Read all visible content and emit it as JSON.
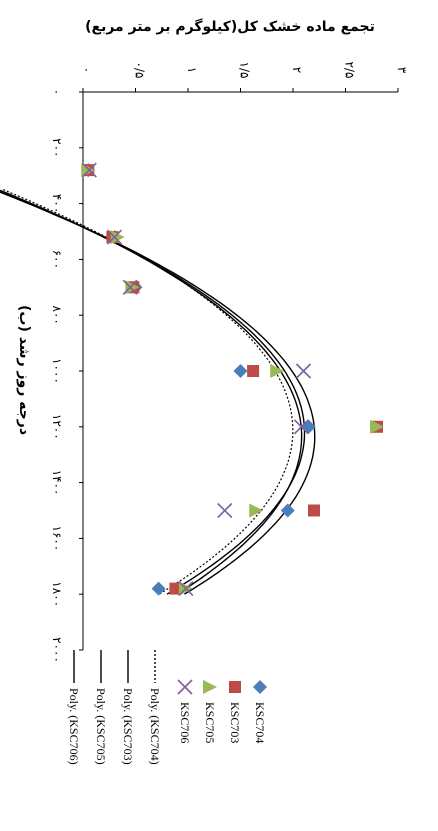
{
  "chart_data": {
    "type": "scatter",
    "title": "",
    "ylabel": "تجمع ماده خشک کل(کیلوگرم بر متر مربع)",
    "xlabel": "درجه روز رشد (ب)",
    "x_ticks": [
      "۰",
      "۲۰۰",
      "۴۰۰",
      "۶۰۰",
      "۸۰۰",
      "۱۰۰۰",
      "۱۲۰۰",
      "۱۴۰۰",
      "۱۶۰۰",
      "۱۸۰۰",
      "۲۰۰۰"
    ],
    "y_ticks": [
      "۰",
      "۰/۵",
      "۱",
      "۱/۵",
      "۲",
      "۲/۵",
      "۳"
    ],
    "xlim": [
      0,
      2000
    ],
    "ylim": [
      0,
      3
    ],
    "legend_position": "bottom",
    "series": [
      {
        "name": "KSC704",
        "marker": "diamond",
        "color": "#4a7ebb",
        "x": [
          280,
          520,
          700,
          1000,
          1200,
          1500,
          1780
        ],
        "y": [
          0.05,
          0.3,
          0.5,
          1.5,
          2.15,
          1.95,
          0.72
        ]
      },
      {
        "name": "KSC703",
        "marker": "square",
        "color": "#be4b48",
        "x": [
          280,
          520,
          700,
          1000,
          1200,
          1500,
          1780
        ],
        "y": [
          0.05,
          0.28,
          0.48,
          1.62,
          2.8,
          2.2,
          0.88
        ]
      },
      {
        "name": "KSC705",
        "marker": "triangle",
        "color": "#98b954",
        "x": [
          280,
          520,
          700,
          1000,
          1200,
          1500,
          1780
        ],
        "y": [
          0.05,
          0.33,
          0.47,
          1.85,
          2.8,
          1.65,
          0.98
        ]
      },
      {
        "name": "KSC706",
        "marker": "x",
        "color": "#7d60a0",
        "x": [
          280,
          520,
          700,
          1000,
          1200,
          1500,
          1780
        ],
        "y": [
          0.06,
          0.3,
          0.45,
          2.1,
          2.08,
          1.35,
          0.98
        ]
      }
    ],
    "trendlines": [
      {
        "name": "Poly. (KSC704)",
        "style": "dotted",
        "color": "#000000",
        "coef": [
          -3.45,
          0.00898,
          -3.7e-06
        ],
        "x_range": [
          350,
          1800
        ]
      },
      {
        "name": "Poly. (KSC703)",
        "style": "solid",
        "color": "#000000",
        "coef": [
          -3.75,
          0.00964,
          -3.9e-06
        ],
        "x_range": [
          350,
          1800
        ]
      },
      {
        "name": "Poly. (KSC705)",
        "style": "solid",
        "color": "#000000",
        "coef": [
          -3.7,
          0.00952,
          -3.9e-06
        ],
        "x_range": [
          350,
          1800
        ]
      },
      {
        "name": "Poly. (KSC706)",
        "style": "solid",
        "color": "#000000",
        "coef": [
          -3.55,
          0.00913,
          -3.7e-06
        ],
        "x_range": [
          350,
          1800
        ]
      }
    ]
  }
}
